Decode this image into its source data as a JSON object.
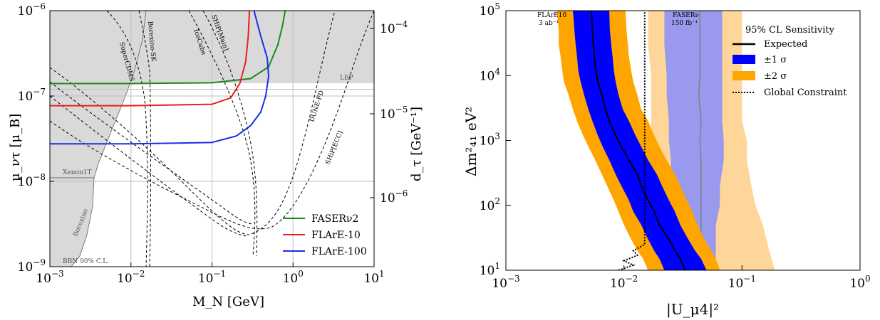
{
  "chart_data": [
    {
      "type": "line",
      "xscale": "log",
      "yscale": "log",
      "xlim": [
        0.001,
        10
      ],
      "ylim": [
        1e-09,
        1e-06
      ],
      "xlabel": "M_N [GeV]",
      "ylabel": "μ_ντ [μ_B]",
      "y2label": "d_τ [GeV⁻¹]",
      "x_ticks": [
        "10^-3",
        "10^-2",
        "10^-1",
        "10^0",
        "10^1"
      ],
      "y_ticks": [
        "10^-9",
        "10^-8",
        "10^-7",
        "10^-6"
      ],
      "y2_ticks": [
        "10^-6",
        "10^-5",
        "10^-4"
      ],
      "grid": true,
      "legend": {
        "placement": "lower-right",
        "entries": [
          "FASERν2",
          "FLArE-10",
          "FLArE-100"
        ]
      },
      "shaded_regions": [
        {
          "label": "LEP",
          "color": "#d9d9d9",
          "y_lower": 1.4e-07
        },
        {
          "label": "Xenon1T",
          "color": "#d9d9d9"
        },
        {
          "label": "Borexino",
          "color": "#d9d9d9"
        },
        {
          "label": "BBN 90% C.L.",
          "color": "#d9d9d9"
        }
      ],
      "series": [
        {
          "name": "FASERν2",
          "color": "#1a8a1a",
          "x": [
            0.001,
            0.01,
            0.1,
            0.3,
            0.5,
            0.65,
            0.75,
            0.8
          ],
          "y": [
            1.4e-07,
            1.4e-07,
            1.43e-07,
            1.6e-07,
            2.2e-07,
            4e-07,
            7e-07,
            1e-06
          ]
        },
        {
          "name": "FLArE-10",
          "color": "#e8201e",
          "x": [
            0.001,
            0.01,
            0.1,
            0.17,
            0.22,
            0.26,
            0.28,
            0.29
          ],
          "y": [
            7.7e-08,
            7.7e-08,
            8e-08,
            9.5e-08,
            1.4e-07,
            2.5e-07,
            5e-07,
            1e-06
          ]
        },
        {
          "name": "FLArE-100",
          "color": "#1a2ee8",
          "x": [
            0.001,
            0.01,
            0.1,
            0.2,
            0.3,
            0.4,
            0.46,
            0.5,
            0.48,
            0.4,
            0.33
          ],
          "y": [
            2.75e-08,
            2.75e-08,
            2.85e-08,
            3.4e-08,
            4.5e-08,
            6.5e-08,
            1e-07,
            1.7e-07,
            2.8e-07,
            5e-07,
            1e-06
          ]
        }
      ],
      "dashed_curves": [
        {
          "label": "SuperCDMS"
        },
        {
          "label": "Borexino-SK"
        },
        {
          "label": "IceCube"
        },
        {
          "label": "SHiP[Main]"
        },
        {
          "label": "DUNE-FD"
        },
        {
          "label": "SHiP[ECC]"
        }
      ]
    },
    {
      "type": "area",
      "xscale": "log",
      "yscale": "log",
      "xlim": [
        0.001,
        1
      ],
      "ylim": [
        10,
        100000
      ],
      "xlabel": "|U_μ4|²",
      "ylabel": "Δm²₄₁ eV²",
      "x_ticks": [
        "10^-3",
        "10^-2",
        "10^-1",
        "10^0"
      ],
      "y_ticks": [
        "10^1",
        "10^2",
        "10^3",
        "10^4",
        "10^5"
      ],
      "grid": false,
      "legend": {
        "placement": "top-right",
        "title": "95% CL Sensitivity",
        "entries": [
          "Expected",
          "±1 σ",
          "±2 σ",
          "Global Constraint"
        ]
      },
      "annotations": [
        {
          "text": "FLArE10",
          "sub": "3 ab⁻¹"
        },
        {
          "text": "FASERν",
          "sub": "150 fb⁻¹"
        }
      ],
      "series": [
        {
          "name": "FLArE10 Expected",
          "color": "#000000",
          "y": [
            10,
            15,
            20,
            30,
            50,
            80,
            120,
            200,
            300,
            500,
            800,
            1200,
            2000,
            3000,
            5000,
            8000,
            12000,
            20000,
            30000,
            50000,
            100000
          ],
          "x": [
            0.033,
            0.03,
            0.027,
            0.024,
            0.02,
            0.018,
            0.016,
            0.014,
            0.013,
            0.011,
            0.0095,
            0.0085,
            0.0075,
            0.007,
            0.0065,
            0.006,
            0.0058,
            0.0056,
            0.0055,
            0.0054,
            0.0053
          ]
        },
        {
          "name": "FLArE10 ±1 σ",
          "color": "#0000ff",
          "y": [
            10,
            15,
            20,
            30,
            50,
            80,
            120,
            200,
            300,
            500,
            800,
            1200,
            2000,
            3000,
            5000,
            8000,
            12000,
            20000,
            30000,
            50000,
            100000
          ],
          "x_low": [
            0.022,
            0.02,
            0.018,
            0.016,
            0.014,
            0.012,
            0.011,
            0.0095,
            0.0085,
            0.0075,
            0.0066,
            0.006,
            0.0054,
            0.005,
            0.0046,
            0.0043,
            0.0041,
            0.004,
            0.0039,
            0.0038,
            0.0037
          ],
          "x_high": [
            0.05,
            0.045,
            0.04,
            0.035,
            0.03,
            0.027,
            0.024,
            0.021,
            0.019,
            0.016,
            0.014,
            0.0125,
            0.011,
            0.0098,
            0.009,
            0.0085,
            0.0082,
            0.008,
            0.0078,
            0.0076,
            0.0075
          ]
        },
        {
          "name": "FLArE10 ±2 σ",
          "color": "#ffa500",
          "y": [
            10,
            15,
            20,
            30,
            50,
            80,
            120,
            200,
            300,
            500,
            800,
            1200,
            2000,
            3000,
            5000,
            8000,
            12000,
            20000,
            30000,
            50000,
            100000
          ],
          "x_low": [
            0.016,
            0.0145,
            0.013,
            0.0115,
            0.01,
            0.009,
            0.0082,
            0.0072,
            0.0065,
            0.0057,
            0.005,
            0.0045,
            0.004,
            0.0037,
            0.0034,
            0.0031,
            0.003,
            0.0029,
            0.0028,
            0.0028,
            0.0027
          ],
          "x_high": [
            0.065,
            0.06,
            0.055,
            0.048,
            0.042,
            0.038,
            0.034,
            0.03,
            0.027,
            0.023,
            0.02,
            0.018,
            0.016,
            0.014,
            0.013,
            0.012,
            0.0115,
            0.011,
            0.0108,
            0.0105,
            0.0103
          ]
        },
        {
          "name": "FASERν Expected",
          "color": "#808080",
          "y": [
            10,
            20,
            50,
            100,
            200,
            500,
            1000,
            2000,
            5000,
            10000,
            30000,
            100000
          ],
          "x": [
            0.045,
            0.045,
            0.045,
            0.045,
            0.045,
            0.045,
            0.044,
            0.045,
            0.043,
            0.044,
            0.044,
            0.044
          ]
        },
        {
          "name": "FASERν ±1 σ",
          "color": "#9999ee",
          "y": [
            10,
            20,
            50,
            100,
            200,
            500,
            1000,
            2000,
            5000,
            10000,
            30000,
            100000
          ],
          "x_low": [
            0.025,
            0.025,
            0.025,
            0.025,
            0.025,
            0.025,
            0.024,
            0.024,
            0.023,
            0.023,
            0.022,
            0.022
          ],
          "x_high": [
            0.06,
            0.06,
            0.06,
            0.065,
            0.065,
            0.07,
            0.07,
            0.068,
            0.068,
            0.068,
            0.068,
            0.068
          ]
        },
        {
          "name": "FASERν ±2 σ",
          "color": "#ffd699",
          "y": [
            10,
            20,
            50,
            100,
            200,
            500,
            1000,
            2000,
            5000,
            10000,
            30000,
            100000
          ],
          "x_low": [
            0.017,
            0.017,
            0.017,
            0.017,
            0.017,
            0.017,
            0.017,
            0.017,
            0.017,
            0.017,
            0.016,
            0.016
          ],
          "x_high": [
            0.19,
            0.17,
            0.15,
            0.13,
            0.12,
            0.11,
            0.11,
            0.1,
            0.1,
            0.1,
            0.1,
            0.1
          ]
        },
        {
          "name": "Global Constraint",
          "color": "#000000",
          "style": "dotted",
          "y": [
            10,
            12,
            14,
            17,
            20,
            25,
            30,
            50,
            100,
            1000,
            10000,
            100000
          ],
          "x": [
            0.009,
            0.012,
            0.01,
            0.013,
            0.012,
            0.015,
            0.015,
            0.015,
            0.015,
            0.015,
            0.015,
            0.015
          ]
        }
      ]
    }
  ]
}
